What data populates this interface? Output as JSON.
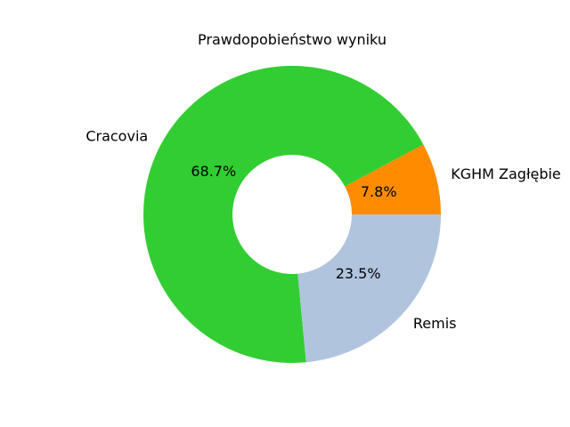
{
  "chart_data": {
    "type": "pie",
    "title": "Prawdopobieństwo wyniku",
    "slices": [
      {
        "label": "KGHM Zagłębie",
        "value": 7.8,
        "pct_label": "7.8%",
        "color": "#ff8c00"
      },
      {
        "label": "Cracovia",
        "value": 68.7,
        "pct_label": "68.7%",
        "color": "#32cd32"
      },
      {
        "label": "Remis",
        "value": 23.5,
        "pct_label": "23.5%",
        "color": "#b0c4de"
      }
    ],
    "donut": true,
    "start_angle_deg": 0,
    "direction": "counterclockwise"
  }
}
